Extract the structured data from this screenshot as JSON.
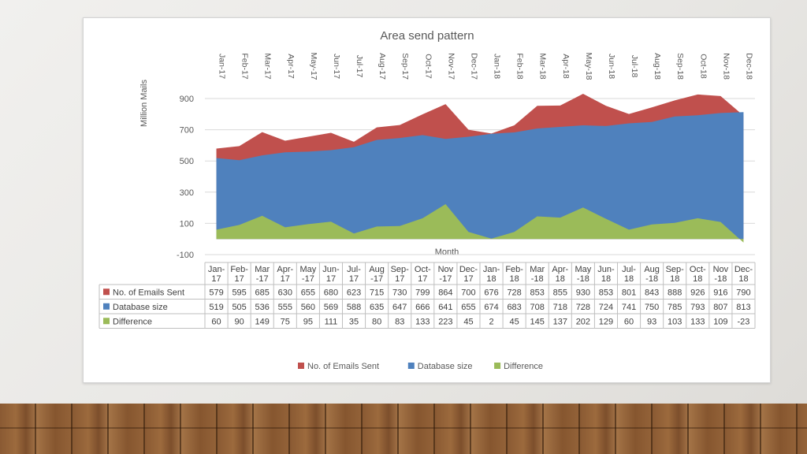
{
  "chart_data": {
    "type": "area",
    "title": "Area send pattern",
    "xlabel": "Month",
    "ylabel": "Million Mails",
    "ylim": [
      -100,
      900
    ],
    "yticks": [
      -100,
      100,
      300,
      500,
      700,
      900
    ],
    "grid": true,
    "legend_position": "bottom",
    "categories": [
      "Jan-17",
      "Feb-17",
      "Mar-17",
      "Apr-17",
      "May-17",
      "Jun-17",
      "Jul-17",
      "Aug-17",
      "Sep-17",
      "Oct-17",
      "Nov-17",
      "Dec-17",
      "Jan-18",
      "Feb-18",
      "Mar-18",
      "Apr-18",
      "May-18",
      "Jun-18",
      "Jul-18",
      "Aug-18",
      "Sep-18",
      "Oct-18",
      "Nov-18",
      "Dec-18"
    ],
    "table_labels": [
      [
        "Jan-",
        "17"
      ],
      [
        "Feb-",
        "17"
      ],
      [
        "Mar",
        "-17"
      ],
      [
        "Apr-",
        "17"
      ],
      [
        "May",
        "-17"
      ],
      [
        "Jun-",
        "17"
      ],
      [
        "Jul-",
        "17"
      ],
      [
        "Aug",
        "-17"
      ],
      [
        "Sep-",
        "17"
      ],
      [
        "Oct-",
        "17"
      ],
      [
        "Nov",
        "-17"
      ],
      [
        "Dec-",
        "17"
      ],
      [
        "Jan-",
        "18"
      ],
      [
        "Feb-",
        "18"
      ],
      [
        "Mar",
        "-18"
      ],
      [
        "Apr-",
        "18"
      ],
      [
        "May",
        "-18"
      ],
      [
        "Jun-",
        "18"
      ],
      [
        "Jul-",
        "18"
      ],
      [
        "Aug",
        "-18"
      ],
      [
        "Sep-",
        "18"
      ],
      [
        "Oct-",
        "18"
      ],
      [
        "Nov",
        "-18"
      ],
      [
        "Dec-",
        "18"
      ]
    ],
    "series": [
      {
        "name": "No. of Emails Sent",
        "color": "#c0504d",
        "values": [
          579,
          595,
          685,
          630,
          655,
          680,
          623,
          715,
          730,
          799,
          864,
          700,
          676,
          728,
          853,
          855,
          930,
          853,
          801,
          843,
          888,
          926,
          916,
          790
        ]
      },
      {
        "name": "Database size",
        "color": "#4f81bd",
        "values": [
          519,
          505,
          536,
          555,
          560,
          569,
          588,
          635,
          647,
          666,
          641,
          655,
          674,
          683,
          708,
          718,
          728,
          724,
          741,
          750,
          785,
          793,
          807,
          813
        ]
      },
      {
        "name": "Difference",
        "color": "#9bbb59",
        "values": [
          60,
          90,
          149,
          75,
          95,
          111,
          35,
          80,
          83,
          133,
          223,
          45,
          2,
          45,
          145,
          137,
          202,
          129,
          60,
          93,
          103,
          133,
          109,
          -23
        ]
      }
    ]
  }
}
